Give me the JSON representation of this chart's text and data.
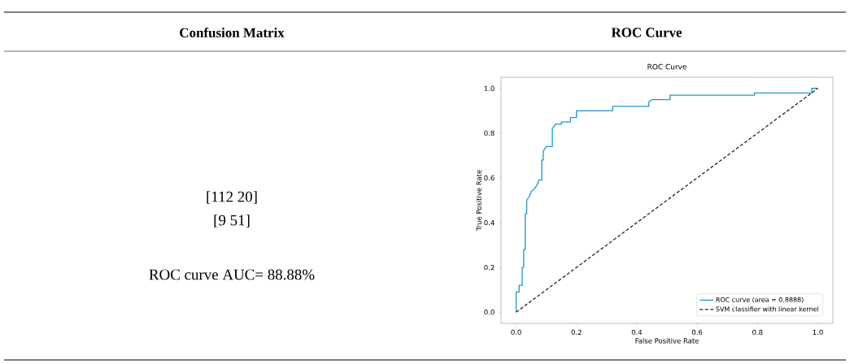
{
  "chart_data": {
    "type": "line",
    "title": "ROC Curve",
    "xlabel": "False Positive Rate",
    "ylabel": "True Positive Rate",
    "annotations": [
      "Confusion Matrix",
      "ROC Curve",
      "[112 20]",
      "[9 51]",
      "ROC curve AUC= 88.88%"
    ],
    "xlim": [
      -0.05,
      1.05
    ],
    "ylim": [
      -0.05,
      1.05
    ],
    "xticks": [
      {
        "value": 0,
        "label": "0.0"
      },
      {
        "value": 0.2,
        "label": "0.2"
      },
      {
        "value": 0.4,
        "label": "0.4"
      },
      {
        "value": 0.6,
        "label": "0.6"
      },
      {
        "value": 0.8,
        "label": "0.8"
      },
      {
        "value": 1,
        "label": "1.0"
      }
    ],
    "yticks": [
      {
        "value": 0,
        "label": "0.0"
      },
      {
        "value": 0.2,
        "label": "0.2"
      },
      {
        "value": 0.4,
        "label": "0.4"
      },
      {
        "value": 0.6,
        "label": "0.6"
      },
      {
        "value": 0.8,
        "label": "0.8"
      },
      {
        "value": 1,
        "label": "1.0"
      }
    ],
    "legend": "bottom right",
    "grid": false,
    "series": [
      {
        "name": "ROC curve (area = 0.8888)",
        "color": "#1f96cc",
        "line_style": "solid",
        "x": [
          0,
          0,
          0.01,
          0.01,
          0.02,
          0.02,
          0.025,
          0.025,
          0.03,
          0.03,
          0.035,
          0.035,
          0.045,
          0.05,
          0.06,
          0.07,
          0.075,
          0.085,
          0.085,
          0.09,
          0.09,
          0.1,
          0.12,
          0.12,
          0.13,
          0.15,
          0.15,
          0.18,
          0.18,
          0.2,
          0.2,
          0.32,
          0.32,
          0.44,
          0.44,
          0.45,
          0.51,
          0.51,
          0.79,
          0.79,
          0.98,
          0.98,
          1
        ],
        "values": [
          0,
          0.09,
          0.09,
          0.12,
          0.12,
          0.2,
          0.2,
          0.28,
          0.28,
          0.44,
          0.44,
          0.5,
          0.52,
          0.54,
          0.55,
          0.57,
          0.59,
          0.59,
          0.68,
          0.68,
          0.72,
          0.74,
          0.74,
          0.82,
          0.84,
          0.84,
          0.85,
          0.85,
          0.87,
          0.87,
          0.9,
          0.9,
          0.92,
          0.92,
          0.94,
          0.95,
          0.95,
          0.97,
          0.97,
          0.98,
          0.98,
          1.0,
          1.0
        ]
      },
      {
        "name": "SVM classifier with linear kernel",
        "color": "#222222",
        "line_style": "dashed",
        "x": [
          0,
          1
        ],
        "values": [
          0,
          1
        ]
      }
    ]
  }
}
